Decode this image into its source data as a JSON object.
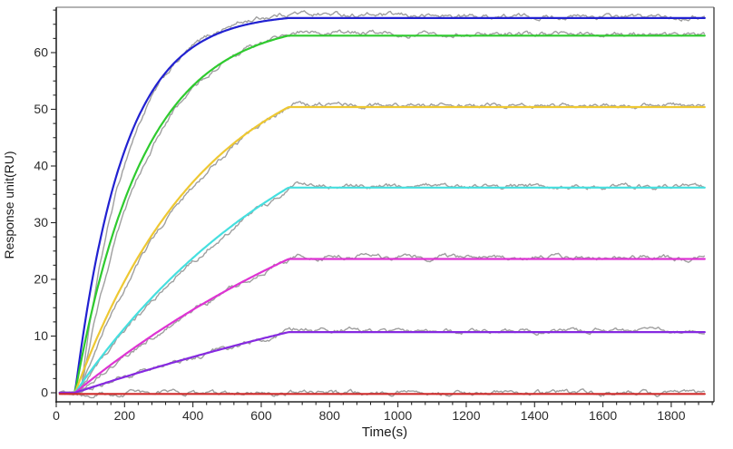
{
  "chart_data": {
    "type": "line",
    "title": "",
    "xlabel": "Time(s)",
    "ylabel": "Response unit(RU)",
    "xlim": [
      0,
      1925
    ],
    "ylim": [
      -1.6,
      68
    ],
    "x_major_ticks": [
      0,
      200,
      400,
      600,
      800,
      1000,
      1200,
      1400,
      1600,
      1800
    ],
    "x_minor_step": 40,
    "y_major_ticks": [
      0,
      10,
      20,
      30,
      40,
      50,
      60
    ],
    "y_minor_step": 2.5,
    "grid": false,
    "legend": "none",
    "phases": {
      "trace_start_s": 10,
      "association_start_s": 55,
      "association_end_s": 680,
      "trace_end_s": 1900
    },
    "model": "fit: R(t) = plateau_RU * (1-exp(-k_obs*(t-t0))) / (1-exp(-k_obs*(t1-t0))) during association, constant plateau afterwards",
    "series": [
      {
        "name": "blue",
        "role": "fit",
        "color": "#2121d1",
        "plateau_RU": 66.1,
        "k_obs": 0.007,
        "raw_overshoot_RU": 0.9,
        "raw_lag_s": 16
      },
      {
        "name": "green",
        "role": "fit",
        "color": "#2ecb2e",
        "plateau_RU": 63.0,
        "k_obs": 0.005,
        "raw_overshoot_RU": 0.6,
        "raw_lag_s": 15
      },
      {
        "name": "yellow",
        "role": "fit",
        "color": "#eec832",
        "plateau_RU": 50.4,
        "k_obs": 0.0026,
        "raw_overshoot_RU": 0.5,
        "raw_lag_s": 12
      },
      {
        "name": "cyan",
        "role": "fit",
        "color": "#45dfdf",
        "plateau_RU": 36.2,
        "k_obs": 0.0014,
        "raw_overshoot_RU": 0.45,
        "raw_lag_s": 9
      },
      {
        "name": "magenta",
        "role": "fit",
        "color": "#de33d3",
        "plateau_RU": 23.6,
        "k_obs": 0.0009,
        "raw_overshoot_RU": 0.55,
        "raw_lag_s": 7
      },
      {
        "name": "purple",
        "role": "fit",
        "color": "#8629e0",
        "plateau_RU": 10.7,
        "k_obs": 0.0005,
        "raw_overshoot_RU": 0.4,
        "raw_lag_s": 5
      },
      {
        "name": "red",
        "role": "fit",
        "color": "#cf2b2b",
        "plateau_RU": 0.0,
        "k_obs": 0.0,
        "shape": "flat",
        "baseline_RU": -0.2,
        "raw_overshoot_RU": 0.1,
        "raw_lag_s": 0
      }
    ],
    "raw_trace": {
      "color": "#9f9f9f",
      "noise_RU": 0.28,
      "settle_offset_RU": 0.2,
      "description": "noisy experimental trace drawn under each fitted curve"
    }
  },
  "figure": {
    "background": "#ffffff",
    "spine_left_color": "#262626",
    "spine_bottom_color": "#262626",
    "spine_top_color": "#b3b3b3",
    "spine_right_color": "#454545",
    "tick_color": "#262626",
    "tick_label_color": "#2b2b2b",
    "axis_title_color": "#1a1a1a"
  }
}
